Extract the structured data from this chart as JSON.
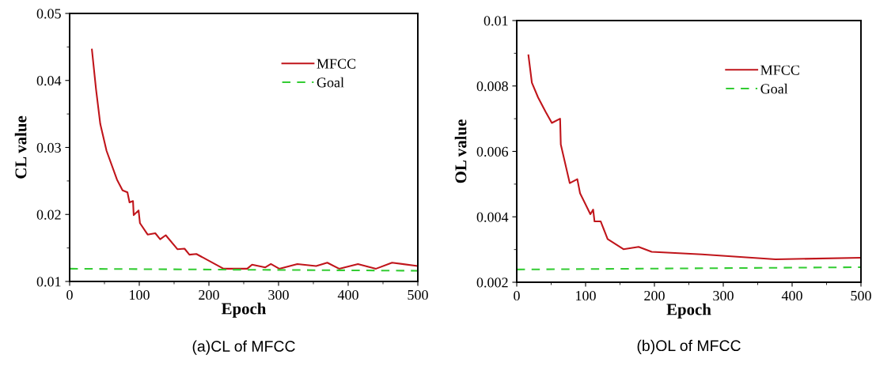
{
  "chart_data": [
    {
      "type": "line",
      "xlabel": "Epoch",
      "ylabel": "CL value",
      "annotations": [
        "(a)CL of MFCC"
      ],
      "xlim": [
        0,
        500
      ],
      "ylim": [
        0.01,
        0.05
      ],
      "xticks": [
        0,
        100,
        200,
        300,
        400,
        500
      ],
      "yticks": [
        0.01,
        0.02,
        0.03,
        0.04,
        0.05
      ],
      "grid": false,
      "legend": "top right",
      "series": [
        {
          "name": "MFCC",
          "color": "#c0151b",
          "line_style": "solid",
          "x": [
            32,
            38,
            44,
            53,
            68,
            76,
            83,
            86,
            91,
            92,
            99,
            101,
            112,
            123,
            130,
            138,
            155,
            165,
            172,
            182,
            221,
            255,
            262,
            281,
            289,
            301,
            327,
            354,
            370,
            387,
            414,
            440,
            463,
            500
          ],
          "values": [
            0.0446,
            0.0386,
            0.0335,
            0.0295,
            0.0252,
            0.0236,
            0.0233,
            0.0218,
            0.022,
            0.0199,
            0.0206,
            0.0187,
            0.017,
            0.0172,
            0.0163,
            0.0169,
            0.0148,
            0.0149,
            0.014,
            0.0141,
            0.0119,
            0.0119,
            0.0125,
            0.0121,
            0.0126,
            0.0119,
            0.0126,
            0.0123,
            0.0128,
            0.0119,
            0.0126,
            0.0119,
            0.0128,
            0.0123
          ]
        },
        {
          "name": "Goal",
          "color": "#33cc33",
          "line_style": "dashed",
          "x": [
            0,
            500
          ],
          "values": [
            0.0119,
            0.0116
          ]
        }
      ]
    },
    {
      "type": "line",
      "xlabel": "Epoch",
      "ylabel": "OL value",
      "annotations": [
        "(b)OL of MFCC"
      ],
      "xlim": [
        0,
        500
      ],
      "ylim": [
        0.002,
        0.01
      ],
      "xticks": [
        0,
        100,
        200,
        300,
        400,
        500
      ],
      "yticks": [
        0.002,
        0.004,
        0.006,
        0.008,
        0.01
      ],
      "grid": false,
      "legend": "top right",
      "series": [
        {
          "name": "MFCC",
          "color": "#c0151b",
          "line_style": "solid",
          "x": [
            17,
            22,
            31,
            42,
            51,
            63,
            64,
            77,
            88,
            92,
            107,
            111,
            113,
            122,
            132,
            155,
            177,
            196,
            269,
            376,
            500
          ],
          "values": [
            0.00894,
            0.0081,
            0.00765,
            0.00721,
            0.00687,
            0.007,
            0.00621,
            0.00503,
            0.00515,
            0.00472,
            0.00408,
            0.00422,
            0.00386,
            0.00386,
            0.00332,
            0.00301,
            0.00308,
            0.00293,
            0.00285,
            0.0027,
            0.00275
          ]
        },
        {
          "name": "Goal",
          "color": "#33cc33",
          "line_style": "dashed",
          "x": [
            0,
            500
          ],
          "values": [
            0.00239,
            0.00246
          ]
        }
      ]
    }
  ]
}
